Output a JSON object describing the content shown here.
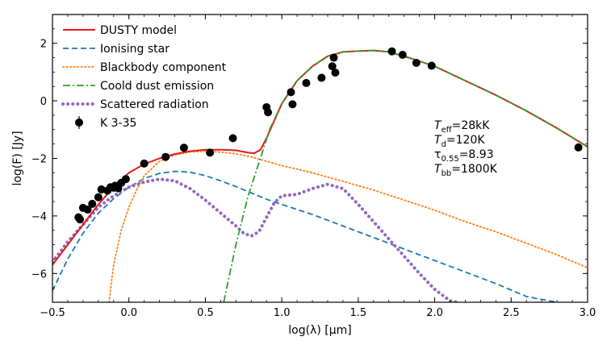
{
  "chart_data": {
    "type": "line",
    "xlabel": "log(λ) [μm]",
    "ylabel": "log(F) [Jy]",
    "xlim": [
      -0.5,
      3.0
    ],
    "ylim": [
      -7,
      3
    ],
    "xticks": [
      -0.5,
      0.0,
      0.5,
      1.0,
      1.5,
      2.0,
      2.5,
      3.0
    ],
    "xtick_labels": [
      "−0.5",
      "0.0",
      "0.5",
      "1.0",
      "1.5",
      "2.0",
      "2.5",
      "3.0"
    ],
    "yticks": [
      -6,
      -4,
      -2,
      0,
      2
    ],
    "ytick_labels": [
      "−6",
      "−4",
      "−2",
      "0",
      "2"
    ],
    "grid": false,
    "legend_position": "top-left",
    "series": [
      {
        "name": "DUSTY model",
        "color": "#e31a1c",
        "style": "solid",
        "x": [
          -0.5,
          -0.4,
          -0.3,
          -0.2,
          -0.1,
          0.0,
          0.1,
          0.2,
          0.3,
          0.4,
          0.5,
          0.6,
          0.7,
          0.78,
          0.82,
          0.86,
          0.9,
          0.95,
          1.0,
          1.05,
          1.1,
          1.2,
          1.3,
          1.4,
          1.5,
          1.6,
          1.7,
          1.8,
          1.9,
          2.0,
          2.2,
          2.4,
          2.6,
          2.8,
          3.0
        ],
        "y": [
          -5.7,
          -5.0,
          -4.3,
          -3.6,
          -3.0,
          -2.5,
          -2.2,
          -2.0,
          -1.85,
          -1.75,
          -1.7,
          -1.7,
          -1.72,
          -1.8,
          -1.82,
          -1.7,
          -1.3,
          -0.7,
          -0.1,
          0.3,
          0.7,
          1.2,
          1.55,
          1.7,
          1.73,
          1.75,
          1.7,
          1.55,
          1.38,
          1.2,
          0.7,
          0.2,
          -0.35,
          -0.95,
          -1.6
        ]
      },
      {
        "name": "Ionising star",
        "color": "#1f77b4",
        "style": "dashed",
        "x": [
          -0.5,
          -0.4,
          -0.3,
          -0.2,
          -0.1,
          0.0,
          0.1,
          0.2,
          0.3,
          0.4,
          0.5,
          0.6,
          0.7,
          0.8,
          0.9,
          1.0,
          1.2,
          1.4,
          1.6,
          1.8,
          2.0,
          2.2,
          2.4,
          2.6,
          2.8
        ],
        "y": [
          -6.6,
          -5.5,
          -4.6,
          -3.9,
          -3.4,
          -3.0,
          -2.7,
          -2.52,
          -2.45,
          -2.48,
          -2.6,
          -2.78,
          -2.98,
          -3.2,
          -3.42,
          -3.6,
          -3.95,
          -4.35,
          -4.75,
          -5.15,
          -5.55,
          -5.95,
          -6.35,
          -6.8,
          -7.0
        ]
      },
      {
        "name": "Blackbody component",
        "color": "#ff7f0e",
        "style": "dotted",
        "x": [
          -0.13,
          -0.1,
          -0.05,
          0.0,
          0.05,
          0.1,
          0.2,
          0.3,
          0.4,
          0.5,
          0.6,
          0.7,
          0.8,
          0.9,
          1.0,
          1.2,
          1.4,
          1.6,
          1.8,
          2.0,
          2.2,
          2.4,
          2.6,
          2.8,
          3.0
        ],
        "y": [
          -7.0,
          -5.7,
          -4.5,
          -3.7,
          -3.1,
          -2.6,
          -2.1,
          -1.88,
          -1.78,
          -1.75,
          -1.78,
          -1.84,
          -1.95,
          -2.1,
          -2.25,
          -2.5,
          -2.8,
          -3.1,
          -3.45,
          -3.8,
          -4.2,
          -4.55,
          -4.95,
          -5.35,
          -5.8
        ]
      },
      {
        "name": "Coold dust emission",
        "color": "#2ca02c",
        "style": "dashdot",
        "x": [
          0.62,
          0.7,
          0.78,
          0.86,
          0.92,
          1.0,
          1.05,
          1.1,
          1.2,
          1.3,
          1.4,
          1.5,
          1.6,
          1.7,
          1.8,
          1.9,
          2.0,
          2.2,
          2.4,
          2.6,
          2.8,
          3.0
        ],
        "y": [
          -7.0,
          -5.0,
          -3.3,
          -2.0,
          -1.0,
          -0.1,
          0.3,
          0.7,
          1.2,
          1.55,
          1.7,
          1.73,
          1.75,
          1.7,
          1.55,
          1.38,
          1.2,
          0.7,
          0.2,
          -0.35,
          -0.95,
          -1.6
        ]
      },
      {
        "name": "Scattered radiation",
        "color": "#9467bd",
        "style": "thick-dotted",
        "x": [
          -0.5,
          -0.4,
          -0.3,
          -0.2,
          -0.1,
          0.0,
          0.1,
          0.2,
          0.3,
          0.4,
          0.5,
          0.6,
          0.7,
          0.75,
          0.8,
          0.85,
          0.9,
          0.95,
          1.0,
          1.1,
          1.2,
          1.3,
          1.4,
          1.5,
          1.6,
          1.7,
          1.8,
          1.9,
          2.0,
          2.1,
          2.15
        ],
        "y": [
          -5.6,
          -4.9,
          -4.3,
          -3.7,
          -3.3,
          -3.0,
          -2.82,
          -2.72,
          -2.78,
          -3.05,
          -3.45,
          -3.9,
          -4.35,
          -4.6,
          -4.7,
          -4.55,
          -4.05,
          -3.55,
          -3.3,
          -3.25,
          -3.05,
          -2.9,
          -3.05,
          -3.6,
          -4.2,
          -4.8,
          -5.4,
          -6.0,
          -6.55,
          -6.95,
          -7.0
        ]
      }
    ],
    "scatter": {
      "name": "K 3-35",
      "color": "#000000",
      "x": [
        -0.33,
        -0.32,
        -0.3,
        -0.27,
        -0.24,
        -0.2,
        -0.18,
        -0.14,
        -0.12,
        -0.1,
        -0.09,
        -0.07,
        -0.05,
        -0.02,
        0.1,
        0.24,
        0.36,
        0.53,
        0.68,
        0.9,
        0.91,
        1.06,
        1.07,
        1.16,
        1.26,
        1.33,
        1.34,
        1.35,
        1.72,
        1.79,
        1.88,
        1.98,
        2.94
      ],
      "y": [
        -4.05,
        -4.12,
        -3.72,
        -3.78,
        -3.58,
        -3.35,
        -3.08,
        -3.12,
        -3.0,
        -3.02,
        -2.95,
        -3.04,
        -2.85,
        -2.72,
        -2.18,
        -1.95,
        -1.63,
        -1.8,
        -1.3,
        -0.22,
        -0.4,
        0.3,
        -0.12,
        0.62,
        0.8,
        1.2,
        1.5,
        0.98,
        1.72,
        1.6,
        1.32,
        1.22,
        -1.62
      ]
    },
    "annotations": [
      {
        "base": "T",
        "sub": "eff",
        "rest": "=28kK"
      },
      {
        "base": "T",
        "sub": "d",
        "rest": "=120K"
      },
      {
        "base": "τ",
        "sub": "0.55",
        "rest": "=8.93"
      },
      {
        "base": "T",
        "sub": "bb",
        "rest": "=1800K"
      }
    ]
  }
}
